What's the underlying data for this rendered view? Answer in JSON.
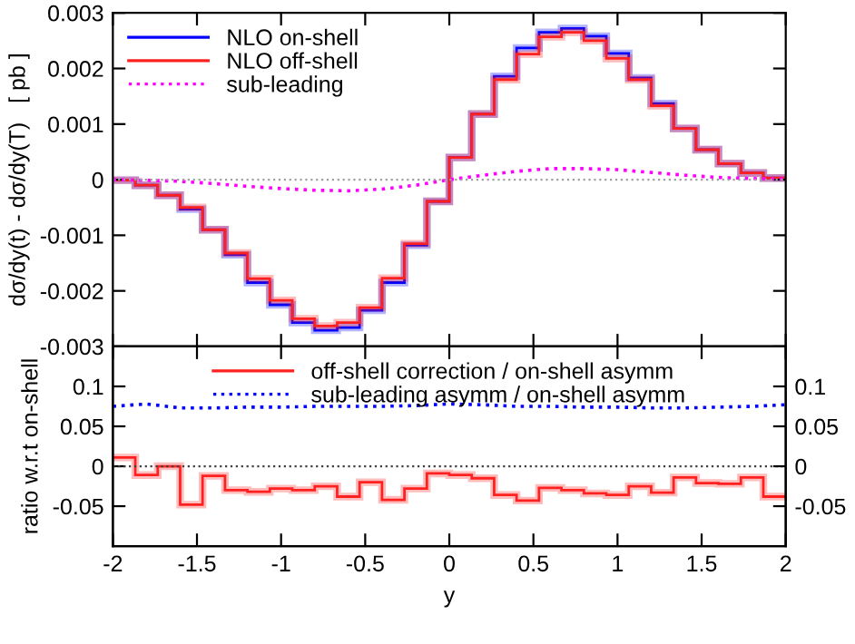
{
  "chart_data": [
    {
      "type": "histogram",
      "ylabel": "dσ/dy(t) - dσ/dy(T)   [ pb ]",
      "bins": [
        -2,
        -1.8667,
        -1.7333,
        -1.6,
        -1.4667,
        -1.3333,
        -1.2,
        -1.0667,
        -0.9333,
        -0.8,
        -0.6667,
        -0.5333,
        -0.4,
        -0.2667,
        -0.1333,
        0,
        0.1333,
        0.2667,
        0.4,
        0.5333,
        0.6667,
        0.8,
        0.9333,
        1.0667,
        1.2,
        1.3333,
        1.4667,
        1.6,
        1.7333,
        1.8667,
        2
      ],
      "series": [
        {
          "name": "NLO on-shell",
          "color": "#0000ff",
          "values": [
            -1e-05,
            -0.0001,
            -0.00028,
            -0.00053,
            -0.0009,
            -0.00135,
            -0.00185,
            -0.00225,
            -0.00257,
            -0.00271,
            -0.00266,
            -0.00235,
            -0.00185,
            -0.00118,
            -0.00039,
            0.0004,
            0.00118,
            0.00186,
            0.00237,
            0.00265,
            0.00272,
            0.00258,
            0.00227,
            0.00183,
            0.00137,
            0.00092,
            0.00054,
            0.00029,
            0.00012,
            3e-05
          ]
        },
        {
          "name": "NLO off-shell",
          "color": "#ff2020",
          "values": [
            -1e-05,
            -0.0001,
            -0.00028,
            -0.0005,
            -0.0009,
            -0.00132,
            -0.00178,
            -0.00217,
            -0.0025,
            -0.00263,
            -0.00257,
            -0.0023,
            -0.00177,
            -0.00115,
            -0.00039,
            0.0004,
            0.00118,
            0.0018,
            0.00226,
            0.00257,
            0.00265,
            0.0025,
            0.00218,
            0.0018,
            0.00133,
            0.00092,
            0.00054,
            0.00029,
            0.00012,
            3e-05
          ]
        },
        {
          "name": "sub-leading",
          "type": "line",
          "line_style": "dotted",
          "color": "#ff00ff",
          "x": [
            -2,
            -1.8,
            -1.6,
            -1.4,
            -1.2,
            -1.0,
            -0.8,
            -0.6,
            -0.4,
            -0.2,
            0,
            0.2,
            0.4,
            0.6,
            0.8,
            1.0,
            1.2,
            1.4,
            1.6,
            1.8,
            2
          ],
          "values": [
            0,
            -1e-05,
            -3e-05,
            -7e-05,
            -0.00012,
            -0.00016,
            -0.00019,
            -0.0002,
            -0.00017,
            -0.0001,
            0,
            8e-05,
            0.00015,
            0.0002,
            0.0002,
            0.00018,
            0.00013,
            8e-05,
            4e-05,
            2e-05,
            1e-05
          ]
        }
      ],
      "xlim": [
        -2,
        2
      ],
      "xticks": [
        -2,
        -1.5,
        -1,
        -0.5,
        0,
        0.5,
        1,
        1.5,
        2
      ],
      "ylim": [
        -0.003,
        0.003
      ],
      "yticks": [
        -0.003,
        -0.002,
        -0.001,
        0,
        0.001,
        0.002,
        0.003
      ],
      "ref_lines": [
        {
          "axis": "y",
          "value": 0,
          "color": "#a0a0a0",
          "line_style": "dotted"
        }
      ],
      "tick_labels": "y",
      "legend": "top left",
      "grid": false
    },
    {
      "type": "histogram",
      "xlabel": "y",
      "ylabel": "ratio w.r.t on-shell",
      "bins": [
        -2,
        -1.8667,
        -1.7333,
        -1.6,
        -1.4667,
        -1.3333,
        -1.2,
        -1.0667,
        -0.9333,
        -0.8,
        -0.6667,
        -0.5333,
        -0.4,
        -0.2667,
        -0.1333,
        0,
        0.1333,
        0.2667,
        0.4,
        0.5333,
        0.6667,
        0.8,
        0.9333,
        1.0667,
        1.2,
        1.3333,
        1.4667,
        1.6,
        1.7333,
        1.8667,
        2
      ],
      "series": [
        {
          "name": "off-shell correction / on-shell asymm",
          "color": "#ff2020",
          "values": [
            0.011,
            -0.011,
            0,
            -0.048,
            -0.012,
            -0.03,
            -0.032,
            -0.028,
            -0.03,
            -0.025,
            -0.038,
            -0.02,
            -0.042,
            -0.028,
            -0.009,
            -0.011,
            -0.015,
            -0.036,
            -0.043,
            -0.027,
            -0.03,
            -0.034,
            -0.036,
            -0.025,
            -0.033,
            -0.014,
            -0.021,
            -0.022,
            -0.014,
            -0.038
          ]
        },
        {
          "name": "sub-leading asymm / on-shell asymm",
          "type": "line",
          "line_style": "dotted",
          "color": "#0000ff",
          "x": [
            -2,
            -1.8,
            -1.6,
            -1.4,
            -1.2,
            -1.0,
            -0.8,
            -0.6,
            -0.4,
            -0.2,
            0,
            0.2,
            0.4,
            0.6,
            0.8,
            1.0,
            1.2,
            1.4,
            1.6,
            1.8,
            2
          ],
          "values": [
            0.075,
            0.078,
            0.073,
            0.073,
            0.074,
            0.074,
            0.075,
            0.075,
            0.075,
            0.076,
            0.078,
            0.077,
            0.075,
            0.075,
            0.074,
            0.074,
            0.073,
            0.073,
            0.074,
            0.075,
            0.077
          ]
        }
      ],
      "xlim": [
        -2,
        2
      ],
      "xticks": [
        -2,
        -1.5,
        -1,
        -0.5,
        0,
        0.5,
        1,
        1.5,
        2
      ],
      "ylim": [
        -0.1,
        0.15
      ],
      "yticks": [
        -0.05,
        0,
        0.05,
        0.1
      ],
      "y2lim": [
        -0.1,
        0.15
      ],
      "y2ticks": [
        -0.05,
        0,
        0.05,
        0.1
      ],
      "ref_lines": [
        {
          "axis": "y",
          "value": 0,
          "color": "#404040",
          "line_style": "dotted"
        }
      ],
      "legend": "top",
      "grid": false
    }
  ]
}
